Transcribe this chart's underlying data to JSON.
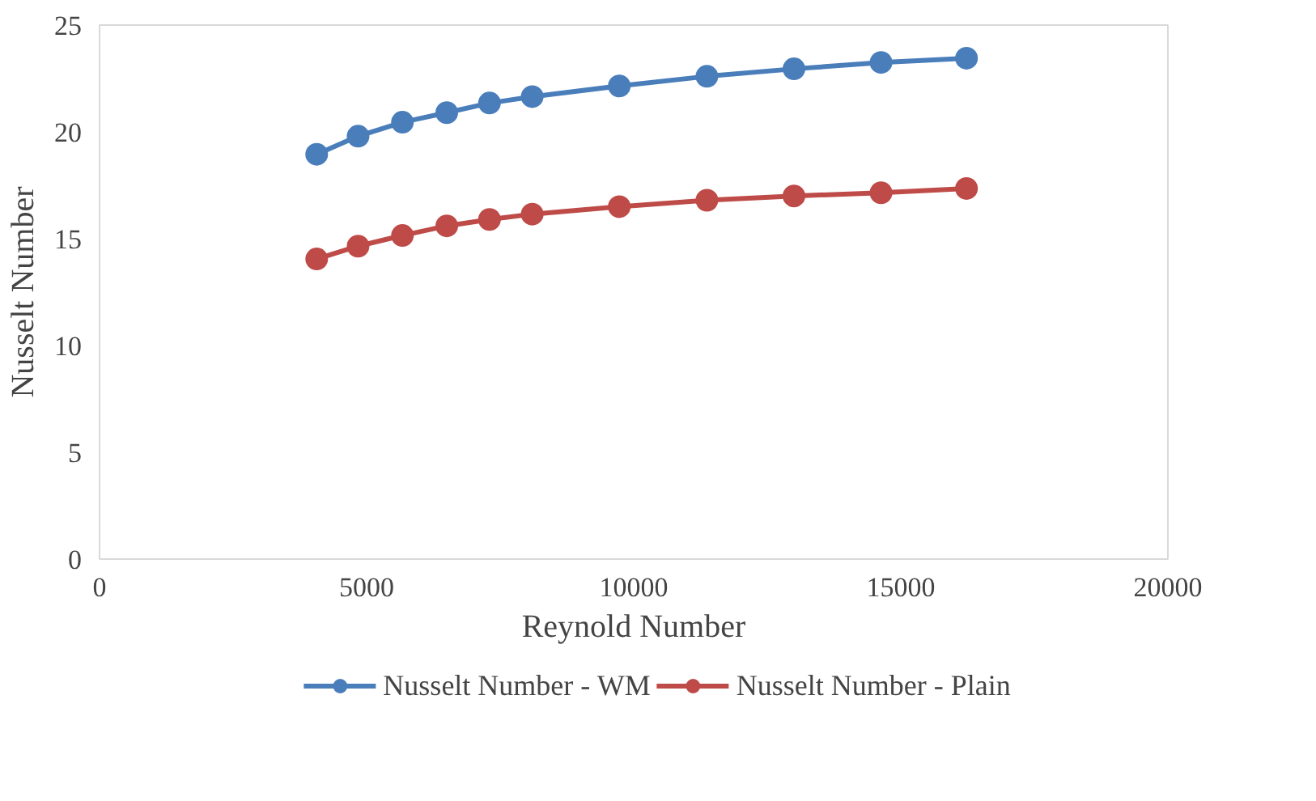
{
  "chart_data": {
    "type": "line",
    "xlabel": "Reynold Number",
    "ylabel": "Nusselt Number",
    "x": [
      4065,
      4840,
      5670,
      6500,
      7300,
      8100,
      9730,
      11370,
      13000,
      14630,
      16230
    ],
    "series": [
      {
        "name": "Nusselt Number - WM",
        "color": "#4a7ebb",
        "values": [
          18.95,
          19.8,
          20.45,
          20.9,
          21.35,
          21.65,
          22.15,
          22.6,
          22.95,
          23.25,
          23.45
        ]
      },
      {
        "name": "Nusselt Number - Plain",
        "color": "#be4b48",
        "values": [
          14.05,
          14.65,
          15.15,
          15.6,
          15.9,
          16.15,
          16.5,
          16.8,
          17.0,
          17.15,
          17.35
        ]
      }
    ],
    "xlim": [
      0,
      20000
    ],
    "xticks": [
      0,
      5000,
      10000,
      15000,
      20000
    ],
    "ylim": [
      0,
      25
    ],
    "yticks": [
      0,
      5,
      10,
      15,
      20,
      25
    ],
    "grid": false,
    "legend": "bottom",
    "marker": "circle",
    "line_style": "solid"
  }
}
